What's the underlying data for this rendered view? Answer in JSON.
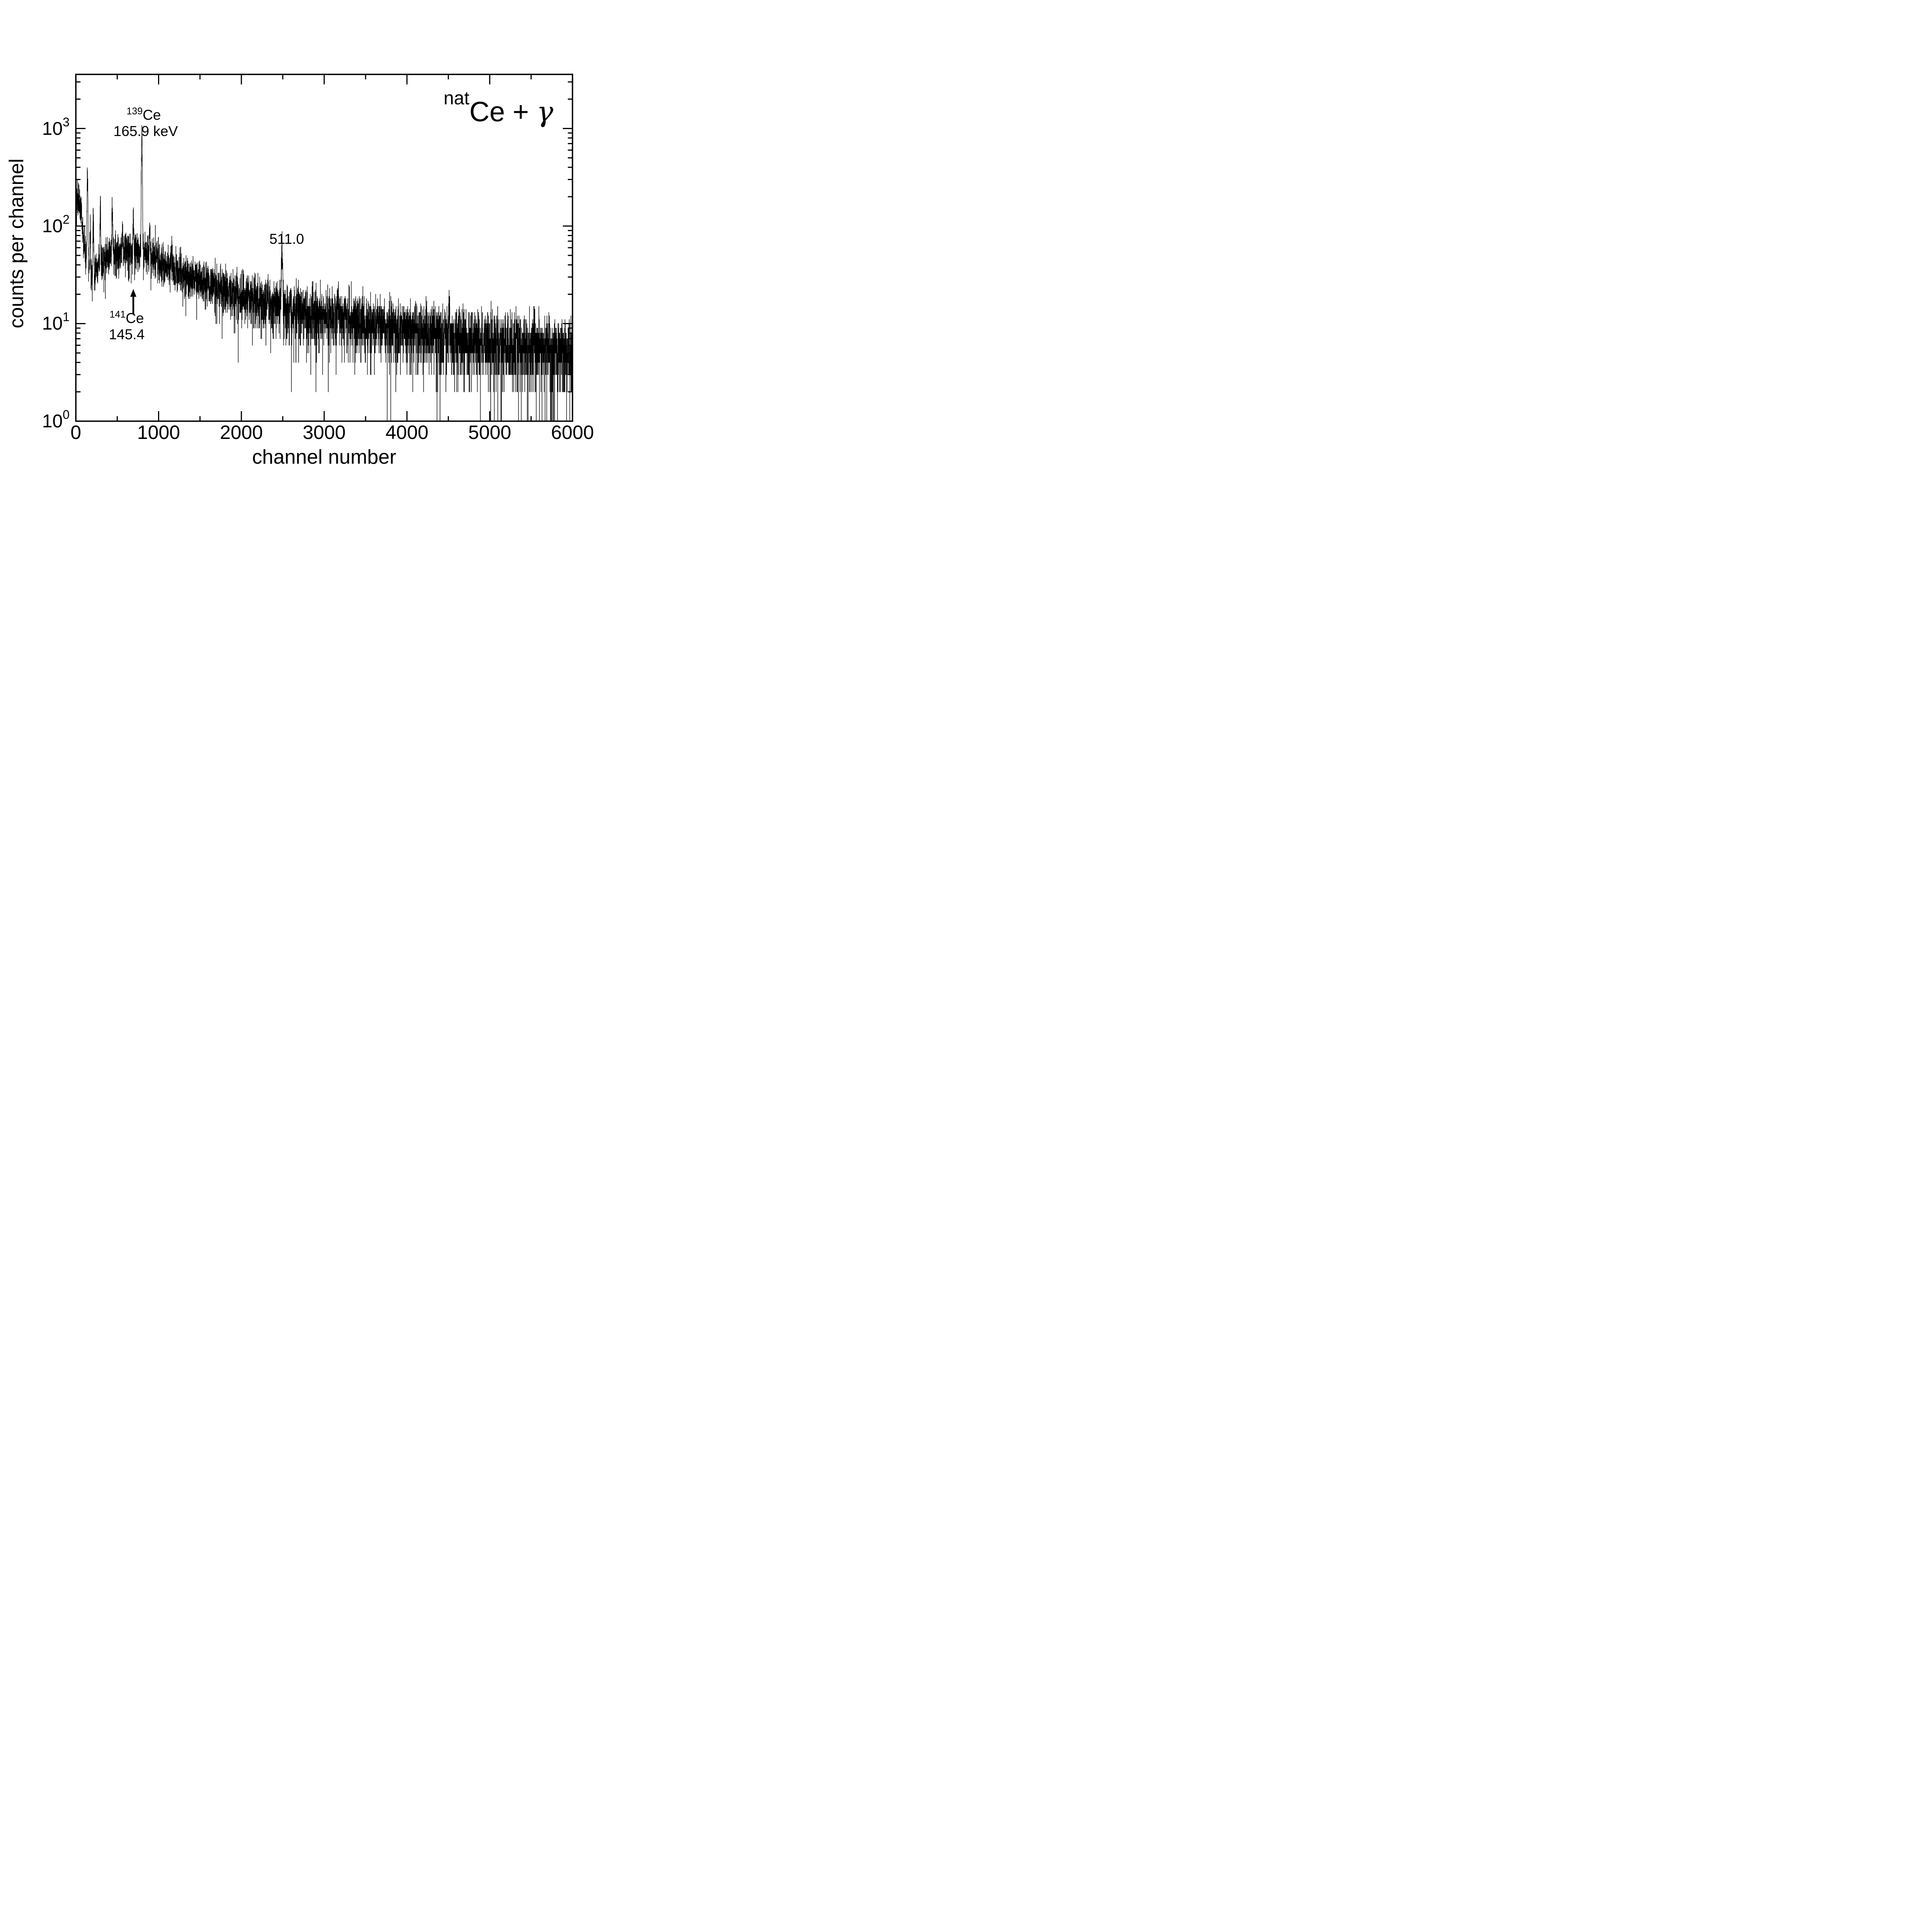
{
  "title": {
    "isotope_prefix": "nat",
    "element_part": "Ce + ",
    "gamma": "γ"
  },
  "axes": {
    "x": {
      "title": "channel number",
      "ticks": [
        {
          "label": "0",
          "value": 0
        },
        {
          "label": "1000",
          "value": 1000
        },
        {
          "label": "2000",
          "value": 2000
        },
        {
          "label": "3000",
          "value": 3000
        },
        {
          "label": "4000",
          "value": 4000
        },
        {
          "label": "5000",
          "value": 5000
        },
        {
          "label": "6000",
          "value": 6000
        }
      ]
    },
    "y": {
      "title": "counts per channel",
      "ticks": [
        {
          "base": "10",
          "exp": "3",
          "value": 1000
        },
        {
          "base": "10",
          "exp": "2",
          "value": 100
        },
        {
          "base": "10",
          "exp": "1",
          "value": 10
        },
        {
          "base": "10",
          "exp": "0",
          "value": 1
        }
      ]
    }
  },
  "annotations": {
    "peak_139ce": {
      "sup": "139",
      "element": "Ce",
      "energy": "165.9 keV"
    },
    "peak_511": {
      "label": "511.0"
    },
    "peak_141ce": {
      "sup": "141",
      "element": "Ce",
      "energy": "145.4"
    }
  },
  "chart_data": {
    "type": "bar",
    "subtype": "histogram-spectrum",
    "title": "natCe + γ",
    "xlabel": "channel number",
    "ylabel": "counts per channel",
    "xlim": [
      0,
      6000
    ],
    "ylim": [
      1,
      3600
    ],
    "yscale": "log",
    "grid": false,
    "legend": "none",
    "x_major_tick_step": 1000,
    "x_minor_tick_step": 500,
    "y_major_ticks": [
      1,
      10,
      100,
      1000
    ],
    "baseline_counts": [
      [
        0,
        155
      ],
      [
        10,
        175
      ],
      [
        25,
        190
      ],
      [
        45,
        180
      ],
      [
        60,
        150
      ],
      [
        75,
        110
      ],
      [
        90,
        75
      ],
      [
        110,
        55
      ],
      [
        130,
        42
      ],
      [
        160,
        34
      ],
      [
        200,
        31
      ],
      [
        250,
        33
      ],
      [
        300,
        40
      ],
      [
        360,
        46
      ],
      [
        420,
        50
      ],
      [
        500,
        53
      ],
      [
        600,
        55
      ],
      [
        700,
        54
      ],
      [
        800,
        52
      ],
      [
        900,
        49
      ],
      [
        1000,
        44
      ],
      [
        1100,
        39
      ],
      [
        1200,
        35
      ],
      [
        1350,
        31
      ],
      [
        1500,
        27
      ],
      [
        1650,
        24
      ],
      [
        1800,
        21.5
      ],
      [
        1950,
        19.5
      ],
      [
        2100,
        18
      ],
      [
        2250,
        16.5
      ],
      [
        2400,
        15.2
      ],
      [
        2550,
        14.2
      ],
      [
        2700,
        13.3
      ],
      [
        2850,
        12.6
      ],
      [
        3000,
        12.0
      ],
      [
        3150,
        11.6
      ],
      [
        3300,
        11.0
      ],
      [
        3450,
        10.4
      ],
      [
        3600,
        9.8
      ],
      [
        3750,
        9.3
      ],
      [
        3900,
        8.9
      ],
      [
        4050,
        8.5
      ],
      [
        4200,
        8.1
      ],
      [
        4350,
        7.8
      ],
      [
        4500,
        7.5
      ],
      [
        4650,
        7.2
      ],
      [
        4800,
        7.0
      ],
      [
        4950,
        6.8
      ],
      [
        5100,
        6.5
      ],
      [
        5250,
        6.3
      ],
      [
        5400,
        6.1
      ],
      [
        5550,
        5.9
      ],
      [
        5700,
        5.7
      ],
      [
        5850,
        5.5
      ],
      [
        6000,
        5.4
      ]
    ],
    "peaks": [
      {
        "channel": 140,
        "amplitude": 270,
        "sigma": 5,
        "label": ""
      },
      {
        "channel": 172,
        "amplitude": 55,
        "sigma": 4,
        "label": ""
      },
      {
        "channel": 210,
        "amplitude": 90,
        "sigma": 4,
        "label": ""
      },
      {
        "channel": 295,
        "amplitude": 118,
        "sigma": 4,
        "label": ""
      },
      {
        "channel": 440,
        "amplitude": 112,
        "sigma": 4,
        "label": ""
      },
      {
        "channel": 560,
        "amplitude": 18,
        "sigma": 5,
        "label": ""
      },
      {
        "channel": 695,
        "amplitude": 88,
        "sigma": 4,
        "label": "141Ce 145.4"
      },
      {
        "channel": 797,
        "amplitude": 700,
        "sigma": 5,
        "label": "139Ce 165.9 keV"
      },
      {
        "channel": 893,
        "amplitude": 45,
        "sigma": 4,
        "label": ""
      },
      {
        "channel": 1158,
        "amplitude": 24,
        "sigma": 5,
        "label": ""
      },
      {
        "channel": 2320,
        "amplitude": 11,
        "sigma": 4,
        "label": ""
      },
      {
        "channel": 2490,
        "amplitude": 46,
        "sigma": 6,
        "label": "511.0"
      },
      {
        "channel": 3170,
        "amplitude": 8,
        "sigma": 5,
        "label": ""
      },
      {
        "channel": 4510,
        "amplitude": 9,
        "sigma": 5,
        "label": ""
      },
      {
        "channel": 5540,
        "amplitude": 7,
        "sigma": 4,
        "label": ""
      }
    ],
    "noise": {
      "model": "poisson",
      "overdispersion_sigma": 0.18,
      "seed": 42
    }
  }
}
